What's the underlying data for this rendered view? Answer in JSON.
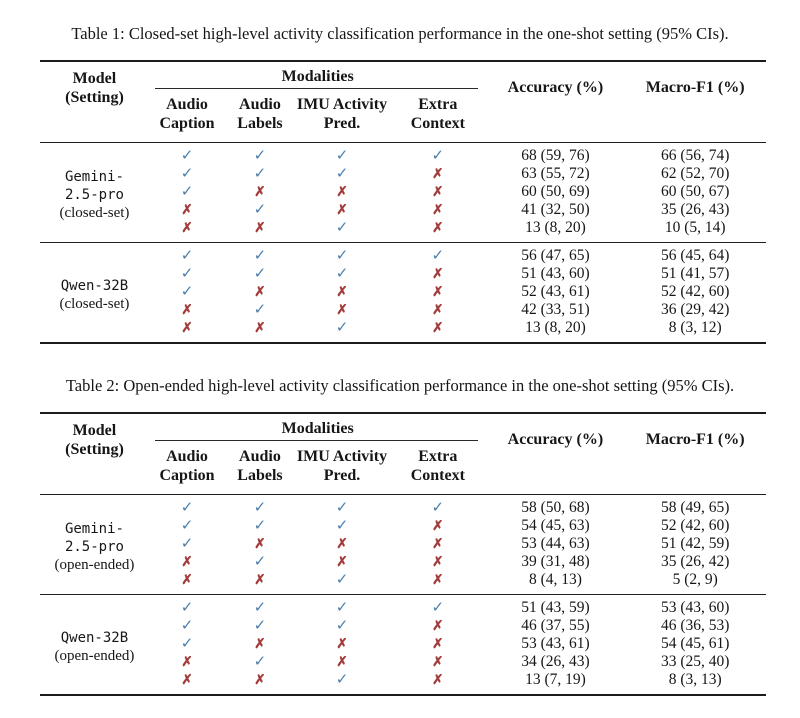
{
  "colors": {
    "check": "#4b7fad",
    "cross": "#a33b3b",
    "text": "#161616",
    "rule": "#1c1c1c",
    "background": "#ffffff"
  },
  "symbols": {
    "check": "✓",
    "cross": "✗"
  },
  "header": {
    "model": "Model",
    "setting": "(Setting)",
    "modalities": "Modalities",
    "modality_columns": [
      {
        "line1": "Audio",
        "line2": "Caption"
      },
      {
        "line1": "Audio",
        "line2": "Labels"
      },
      {
        "line1": "IMU Activity",
        "line2": "Pred."
      },
      {
        "line1": "Extra",
        "line2": "Context"
      }
    ],
    "accuracy": "Accuracy (%)",
    "macro_f1": "Macro-F1 (%)"
  },
  "tables": [
    {
      "caption": "Table 1: Closed-set high-level activity classification performance in the one-shot setting (95% CIs).",
      "groups": [
        {
          "model_lines": [
            "Gemini-",
            "2.5-pro"
          ],
          "setting": "(closed-set)",
          "rows": [
            {
              "modalities": [
                true,
                true,
                true,
                true
              ],
              "accuracy": "68 (59, 76)",
              "macro_f1": "66 (56, 74)"
            },
            {
              "modalities": [
                true,
                true,
                true,
                false
              ],
              "accuracy": "63 (55, 72)",
              "macro_f1": "62 (52, 70)"
            },
            {
              "modalities": [
                true,
                false,
                false,
                false
              ],
              "accuracy": "60 (50, 69)",
              "macro_f1": "60 (50, 67)"
            },
            {
              "modalities": [
                false,
                true,
                false,
                false
              ],
              "accuracy": "41 (32, 50)",
              "macro_f1": "35 (26, 43)"
            },
            {
              "modalities": [
                false,
                false,
                true,
                false
              ],
              "accuracy": "13 (8, 20)",
              "macro_f1": "10 (5, 14)"
            }
          ]
        },
        {
          "model_lines": [
            "Qwen-32B"
          ],
          "setting": "(closed-set)",
          "rows": [
            {
              "modalities": [
                true,
                true,
                true,
                true
              ],
              "accuracy": "56 (47, 65)",
              "macro_f1": "56 (45, 64)"
            },
            {
              "modalities": [
                true,
                true,
                true,
                false
              ],
              "accuracy": "51 (43, 60)",
              "macro_f1": "51 (41, 57)"
            },
            {
              "modalities": [
                true,
                false,
                false,
                false
              ],
              "accuracy": "52 (43, 61)",
              "macro_f1": "52 (42, 60)"
            },
            {
              "modalities": [
                false,
                true,
                false,
                false
              ],
              "accuracy": "42 (33, 51)",
              "macro_f1": "36 (29, 42)"
            },
            {
              "modalities": [
                false,
                false,
                true,
                false
              ],
              "accuracy": "13 (8, 20)",
              "macro_f1": "8 (3, 12)"
            }
          ]
        }
      ]
    },
    {
      "caption": "Table 2: Open-ended high-level activity classification performance in the one-shot setting (95% CIs).",
      "groups": [
        {
          "model_lines": [
            "Gemini-",
            "2.5-pro"
          ],
          "setting": "(open-ended)",
          "rows": [
            {
              "modalities": [
                true,
                true,
                true,
                true
              ],
              "accuracy": "58 (50, 68)",
              "macro_f1": "58 (49, 65)"
            },
            {
              "modalities": [
                true,
                true,
                true,
                false
              ],
              "accuracy": "54 (45, 63)",
              "macro_f1": "52 (42, 60)"
            },
            {
              "modalities": [
                true,
                false,
                false,
                false
              ],
              "accuracy": "53 (44, 63)",
              "macro_f1": "51 (42, 59)"
            },
            {
              "modalities": [
                false,
                true,
                false,
                false
              ],
              "accuracy": "39 (31, 48)",
              "macro_f1": "35 (26, 42)"
            },
            {
              "modalities": [
                false,
                false,
                true,
                false
              ],
              "accuracy": "8 (4, 13)",
              "macro_f1": "5 (2, 9)"
            }
          ]
        },
        {
          "model_lines": [
            "Qwen-32B"
          ],
          "setting": "(open-ended)",
          "rows": [
            {
              "modalities": [
                true,
                true,
                true,
                true
              ],
              "accuracy": "51 (43, 59)",
              "macro_f1": "53 (43, 60)"
            },
            {
              "modalities": [
                true,
                true,
                true,
                false
              ],
              "accuracy": "46 (37, 55)",
              "macro_f1": "46 (36, 53)"
            },
            {
              "modalities": [
                true,
                false,
                false,
                false
              ],
              "accuracy": "53 (43, 61)",
              "macro_f1": "54 (45, 61)"
            },
            {
              "modalities": [
                false,
                true,
                false,
                false
              ],
              "accuracy": "34 (26, 43)",
              "macro_f1": "33 (25, 40)"
            },
            {
              "modalities": [
                false,
                false,
                true,
                false
              ],
              "accuracy": "13 (7, 19)",
              "macro_f1": "8 (3, 13)"
            }
          ]
        }
      ]
    }
  ]
}
